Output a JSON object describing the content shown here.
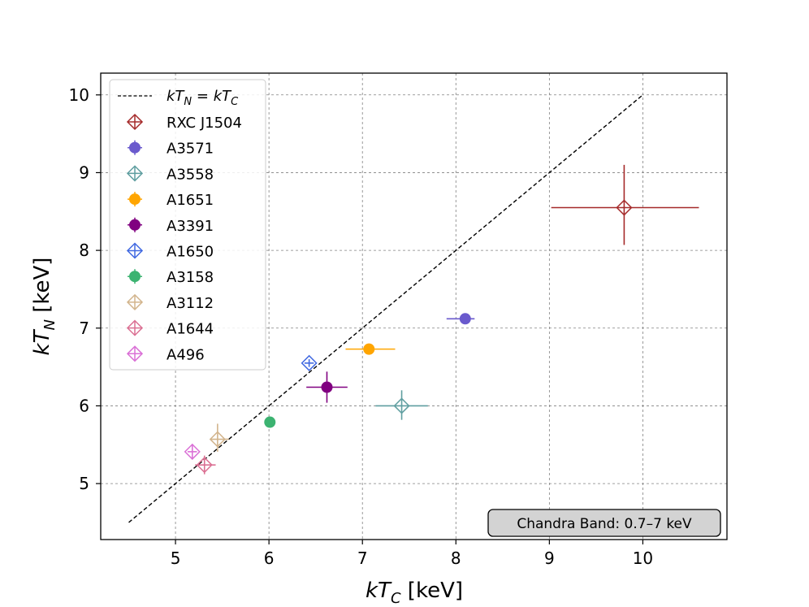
{
  "chart_data": {
    "type": "scatter",
    "title": "",
    "xlabel": "kT_C [keV]",
    "ylabel": "kT_N [keV]",
    "xlabel_parts": {
      "main": "kT",
      "sub": "C",
      "unit": " [keV]"
    },
    "ylabel_parts": {
      "main": "kT",
      "sub": "N",
      "unit": " [keV]"
    },
    "xlim": [
      4.2,
      10.9
    ],
    "ylim": [
      4.28,
      10.28
    ],
    "xticks": [
      5,
      6,
      7,
      8,
      9,
      10
    ],
    "yticks": [
      5,
      6,
      7,
      8,
      9,
      10
    ],
    "grid": true,
    "reference_line": {
      "label_parts": {
        "a": "kT",
        "a_sub": "N",
        "eq": " = ",
        "b": "kT",
        "b_sub": "C"
      },
      "label": "kT_N = kT_C",
      "x": [
        4.5,
        10.0
      ],
      "y": [
        4.5,
        10.0
      ],
      "color": "#000000"
    },
    "series": [
      {
        "name": "RXC J1504",
        "marker": "open-diamond",
        "color": "#a52a2a",
        "x": 9.8,
        "y": 8.55,
        "xerr": [
          0.78,
          0.8
        ],
        "yerr": [
          0.48,
          0.55
        ]
      },
      {
        "name": "A3571",
        "marker": "filled-circle",
        "color": "#6a5acd",
        "x": 8.1,
        "y": 7.12,
        "xerr": [
          0.2,
          0.1
        ],
        "yerr": [
          0.05,
          0.05
        ]
      },
      {
        "name": "A3558",
        "marker": "open-diamond",
        "color": "#5f9ea0",
        "x": 7.42,
        "y": 6.0,
        "xerr": [
          0.28,
          0.28
        ],
        "yerr": [
          0.18,
          0.2
        ]
      },
      {
        "name": "A1651",
        "marker": "filled-circle",
        "color": "#ffa500",
        "x": 7.07,
        "y": 6.73,
        "xerr": [
          0.25,
          0.28
        ],
        "yerr": [
          0.07,
          0.07
        ]
      },
      {
        "name": "A3391",
        "marker": "filled-circle",
        "color": "#800080",
        "x": 6.62,
        "y": 6.24,
        "xerr": [
          0.22,
          0.22
        ],
        "yerr": [
          0.2,
          0.2
        ]
      },
      {
        "name": "A1650",
        "marker": "open-diamond",
        "color": "#4169e1",
        "x": 6.43,
        "y": 6.55,
        "xerr": [
          0.05,
          0.05
        ],
        "yerr": [
          0.05,
          0.05
        ]
      },
      {
        "name": "A3158",
        "marker": "filled-circle",
        "color": "#3cb371",
        "x": 6.01,
        "y": 5.79,
        "xerr": [
          0.05,
          0.05
        ],
        "yerr": [
          0.05,
          0.05
        ]
      },
      {
        "name": "A3112",
        "marker": "open-diamond",
        "color": "#d2b48c",
        "x": 5.45,
        "y": 5.57,
        "xerr": [
          0.08,
          0.12
        ],
        "yerr": [
          0.16,
          0.2
        ]
      },
      {
        "name": "A1644",
        "marker": "open-diamond",
        "color": "#db7093",
        "x": 5.31,
        "y": 5.24,
        "xerr": [
          0.1,
          0.12
        ],
        "yerr": [
          0.12,
          0.12
        ]
      },
      {
        "name": "A496",
        "marker": "open-diamond",
        "color": "#da70d6",
        "x": 5.18,
        "y": 5.41,
        "xerr": [
          0.05,
          0.05
        ],
        "yerr": [
          0.1,
          0.1
        ]
      }
    ],
    "legend_location": "upper-left",
    "annotation": "Chandra Band: 0.7–7 keV"
  }
}
